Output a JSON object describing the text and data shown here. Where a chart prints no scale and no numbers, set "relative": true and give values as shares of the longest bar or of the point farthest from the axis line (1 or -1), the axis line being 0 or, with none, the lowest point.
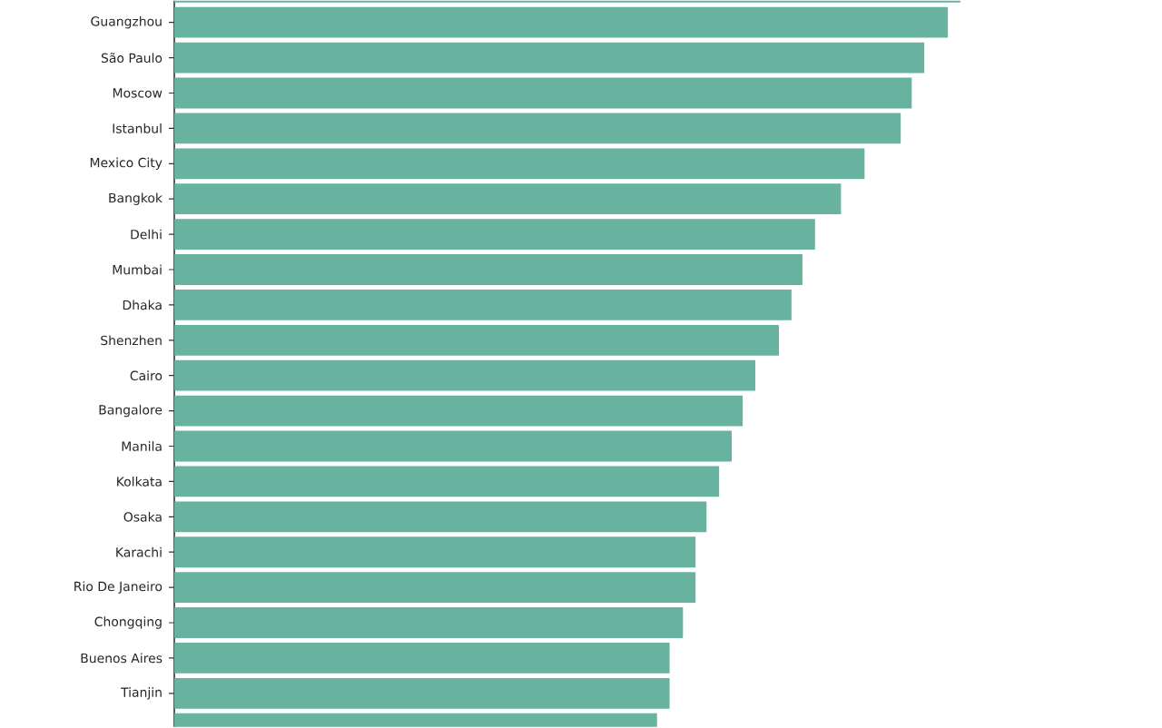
{
  "chart_data": {
    "type": "bar",
    "orientation": "horizontal",
    "relative": true,
    "color": "#67b3a0",
    "categories": [
      null,
      "Guangzhou",
      "São Paulo",
      "Moscow",
      "Istanbul",
      "Mexico City",
      "Bangkok",
      "Delhi",
      "Mumbai",
      "Dhaka",
      "Shenzhen",
      "Cairo",
      "Bangalore",
      "Manila",
      "Kolkata",
      "Osaka",
      "Karachi",
      "Rio De Janeiro",
      "Chongqing",
      "Buenos Aires",
      "Tianjin",
      null
    ],
    "values": [
      1,
      0.984,
      0.954,
      0.938,
      0.924,
      0.878,
      0.848,
      0.815,
      0.799,
      0.785,
      0.769,
      0.739,
      0.723,
      0.709,
      0.693,
      0.677,
      0.663,
      0.663,
      0.647,
      0.63,
      0.63,
      0.614
    ]
  }
}
